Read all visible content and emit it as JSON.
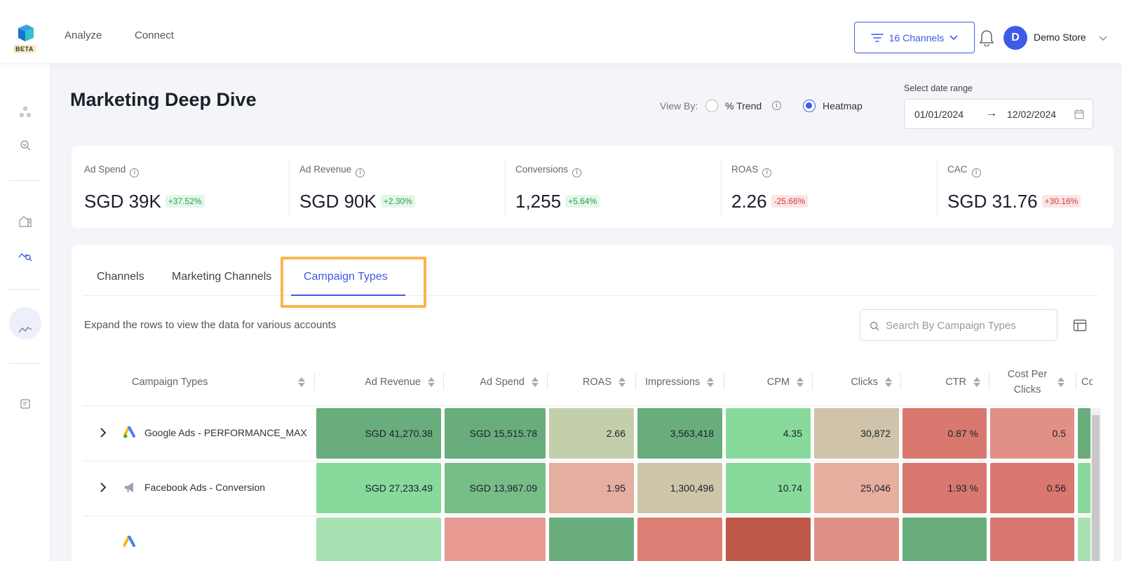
{
  "brand": {
    "beta_label": "BETA"
  },
  "topnav": {
    "links": [
      "Analyze",
      "Connect"
    ]
  },
  "channels_button": {
    "label": "16 Channels"
  },
  "account": {
    "avatar_letter": "D",
    "store_name": "Demo Store"
  },
  "page": {
    "title": "Marketing Deep Dive",
    "view_by_label": "View By:",
    "view_options": [
      {
        "label": "% Trend",
        "selected": false
      },
      {
        "label": "Heatmap",
        "selected": true
      }
    ],
    "date_caption": "Select date range",
    "date_from": "01/01/2024",
    "date_arrow": "→",
    "date_to": "12/02/2024"
  },
  "metrics": [
    {
      "label": "Ad Spend",
      "value": "SGD 39K",
      "change": "+37.52%",
      "trend": "pos"
    },
    {
      "label": "Ad Revenue",
      "value": "SGD 90K",
      "change": "+2.30%",
      "trend": "pos"
    },
    {
      "label": "Conversions",
      "value": "1,255",
      "change": "+5.64%",
      "trend": "pos"
    },
    {
      "label": "ROAS",
      "value": "2.26",
      "change": "-25.66%",
      "trend": "neg"
    },
    {
      "label": "CAC",
      "value": "SGD 31.76",
      "change": "+30.16%",
      "trend": "neg"
    }
  ],
  "tabs": [
    {
      "label": "Channels",
      "active": false
    },
    {
      "label": "Marketing Channels",
      "active": false
    },
    {
      "label": "Campaign Types",
      "active": true
    }
  ],
  "table": {
    "hint": "Expand the rows to view the data for various accounts",
    "search_placeholder": "Search By Campaign Types",
    "columns": [
      "Campaign Types",
      "Ad Revenue",
      "Ad Spend",
      "ROAS",
      "Impressions",
      "CPM",
      "Clicks",
      "CTR",
      "Cost Per Clicks",
      "Co"
    ],
    "rows": [
      {
        "name": "Google Ads - PERFORMANCE_MAX",
        "icon": "google-ads-icon",
        "cells": [
          "SGD 41,270.38",
          "SGD 15,515.78",
          "2.66",
          "3,563,418",
          "4.35",
          "30,872",
          "0.87 %",
          "0.5"
        ],
        "colors": [
          "#6aad7c",
          "#6aad7c",
          "#c3cfab",
          "#6aad7c",
          "#88da9c",
          "#cfc3aa",
          "#d9786f",
          "#e09085"
        ]
      },
      {
        "name": "Facebook Ads - Conversion",
        "icon": "megaphone-icon",
        "cells": [
          "SGD 27,233.49",
          "SGD 13,967.09",
          "1.95",
          "1,300,496",
          "10.74",
          "25,046",
          "1.93 %",
          "0.56"
        ],
        "colors": [
          "#88da9c",
          "#76bd88",
          "#e6aea0",
          "#cec6aa",
          "#88da9c",
          "#e6ae9f",
          "#d9786f",
          "#d9786f"
        ]
      },
      {
        "name": "",
        "icon": "google-ads-icon",
        "cells": [
          "",
          "",
          "",
          "",
          "",
          "",
          "",
          ""
        ],
        "colors": [
          "#a8e2b2",
          "#e89a92",
          "#6aad7c",
          "#dc8075",
          "#bd5a4a",
          "#e09085",
          "#6aad7c",
          "#d9786f"
        ]
      }
    ]
  },
  "colors": {
    "accent": "#3d5be8",
    "highlight": "#f8b64c"
  }
}
